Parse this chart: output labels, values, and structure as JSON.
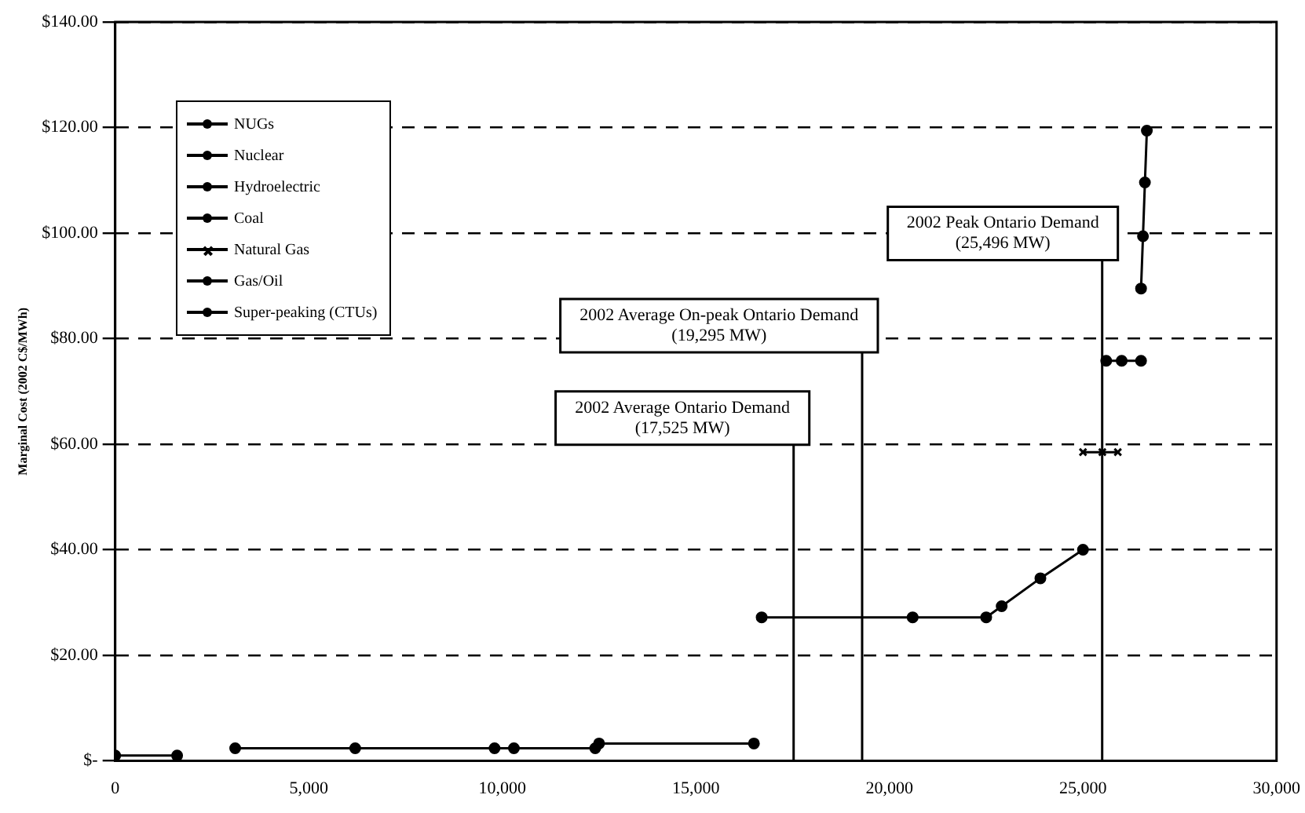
{
  "chart_data": {
    "type": "line",
    "ylabel": "Marginal Cost (2002 C$/MWh)",
    "xlim": [
      0,
      30000
    ],
    "xticks": [
      {
        "value": 0,
        "label": "0"
      },
      {
        "value": 5000,
        "label": "5,000"
      },
      {
        "value": 10000,
        "label": "10,000"
      },
      {
        "value": 15000,
        "label": "15,000"
      },
      {
        "value": 20000,
        "label": "20,000"
      },
      {
        "value": 25000,
        "label": "25,000"
      },
      {
        "value": 30000,
        "label": "30,000"
      }
    ],
    "ylim": [
      0,
      140
    ],
    "yticks": [
      {
        "value": 0,
        "label": "$-"
      },
      {
        "value": 20,
        "label": "$20.00"
      },
      {
        "value": 40,
        "label": "$40.00"
      },
      {
        "value": 60,
        "label": "$60.00"
      },
      {
        "value": 80,
        "label": "$80.00"
      },
      {
        "value": 100,
        "label": "$100.00"
      },
      {
        "value": 120,
        "label": "$120.00"
      },
      {
        "value": 140,
        "label": "$140.00"
      }
    ],
    "grid": "y",
    "legend": "top left",
    "line_style": "solid",
    "series": [
      {
        "name": "NUGs",
        "color": "#000000",
        "marker": "circle",
        "x": [
          0,
          1600
        ],
        "values": [
          1,
          1
        ]
      },
      {
        "name": "Nuclear",
        "color": "#000000",
        "marker": "circle",
        "x": [
          3100,
          6200,
          9800,
          10300,
          12400
        ],
        "values": [
          2.4,
          2.4,
          2.4,
          2.4,
          2.4
        ]
      },
      {
        "name": "Hydroelectric",
        "color": "#000000",
        "marker": "circle",
        "x": [
          12500,
          16500
        ],
        "values": [
          3.3,
          3.3
        ]
      },
      {
        "name": "Coal",
        "color": "#000000",
        "marker": "circle",
        "x": [
          16700,
          20600,
          22500,
          22900,
          23900,
          25000
        ],
        "values": [
          27.2,
          27.2,
          27.2,
          29.3,
          34.6,
          40
        ]
      },
      {
        "name": "Natural Gas",
        "color": "#000000",
        "marker": "cross",
        "x": [
          25000,
          25500,
          25900
        ],
        "values": [
          58.5,
          58.5,
          58.5
        ]
      },
      {
        "name": "Gas/Oil",
        "color": "#000000",
        "marker": "circle",
        "x": [
          25600,
          26000,
          26500
        ],
        "values": [
          75.8,
          75.8,
          75.8
        ]
      },
      {
        "name": "Super-peaking (CTUs)",
        "color": "#000000",
        "marker": "circle",
        "x": [
          26500,
          26550,
          26600,
          26650
        ],
        "values": [
          89.5,
          99.4,
          109.6,
          119.4
        ]
      }
    ],
    "ref_lines": [
      {
        "axis": "x",
        "value": 17525,
        "label": "2002 Average Ontario Demand\n(17,525 MW)"
      },
      {
        "axis": "x",
        "value": 19295,
        "label": "2002 Average On-peak Ontario Demand\n(19,295 MW)"
      },
      {
        "axis": "x",
        "value": 25496,
        "label": "2002 Peak Ontario Demand\n(25,496 MW)"
      }
    ]
  }
}
